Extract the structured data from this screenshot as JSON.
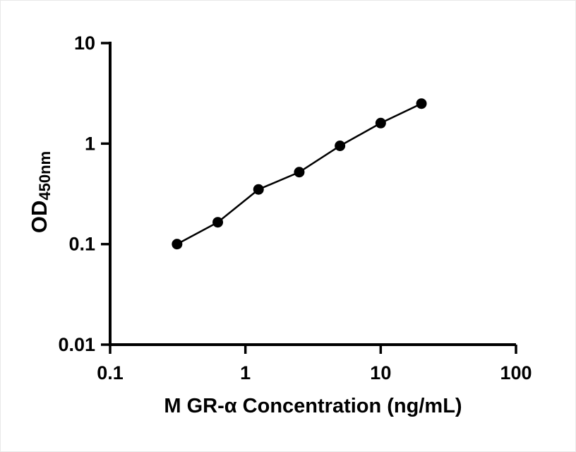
{
  "figure": {
    "background": "#ffffff"
  },
  "chart_data": {
    "type": "scatter",
    "draw_style": "line+markers",
    "x_scale": "log10",
    "y_scale": "log10",
    "title": "",
    "xlabel": "M GR-α Concentration (ng/mL)",
    "ylabel_main": "OD",
    "ylabel_sub": "450nm",
    "xlim": [
      0.1,
      100
    ],
    "ylim": [
      0.01,
      10
    ],
    "x": [
      0.3125,
      0.625,
      1.25,
      2.5,
      5,
      10,
      20
    ],
    "y": [
      0.1,
      0.165,
      0.35,
      0.52,
      0.95,
      1.6,
      2.5
    ],
    "x_ticks": [
      {
        "value": 0.1,
        "label": "0.1"
      },
      {
        "value": 1,
        "label": "1"
      },
      {
        "value": 10,
        "label": "10"
      },
      {
        "value": 100,
        "label": "100"
      }
    ],
    "y_ticks": [
      {
        "value": 0.01,
        "label": "0.01"
      },
      {
        "value": 0.1,
        "label": "0.1"
      },
      {
        "value": 1,
        "label": "1"
      },
      {
        "value": 10,
        "label": "10"
      }
    ],
    "grid": false,
    "legend": "none",
    "line_color": "#000000",
    "marker_color": "#000000",
    "axis_color": "#000000",
    "marker_radius": 7.5
  }
}
